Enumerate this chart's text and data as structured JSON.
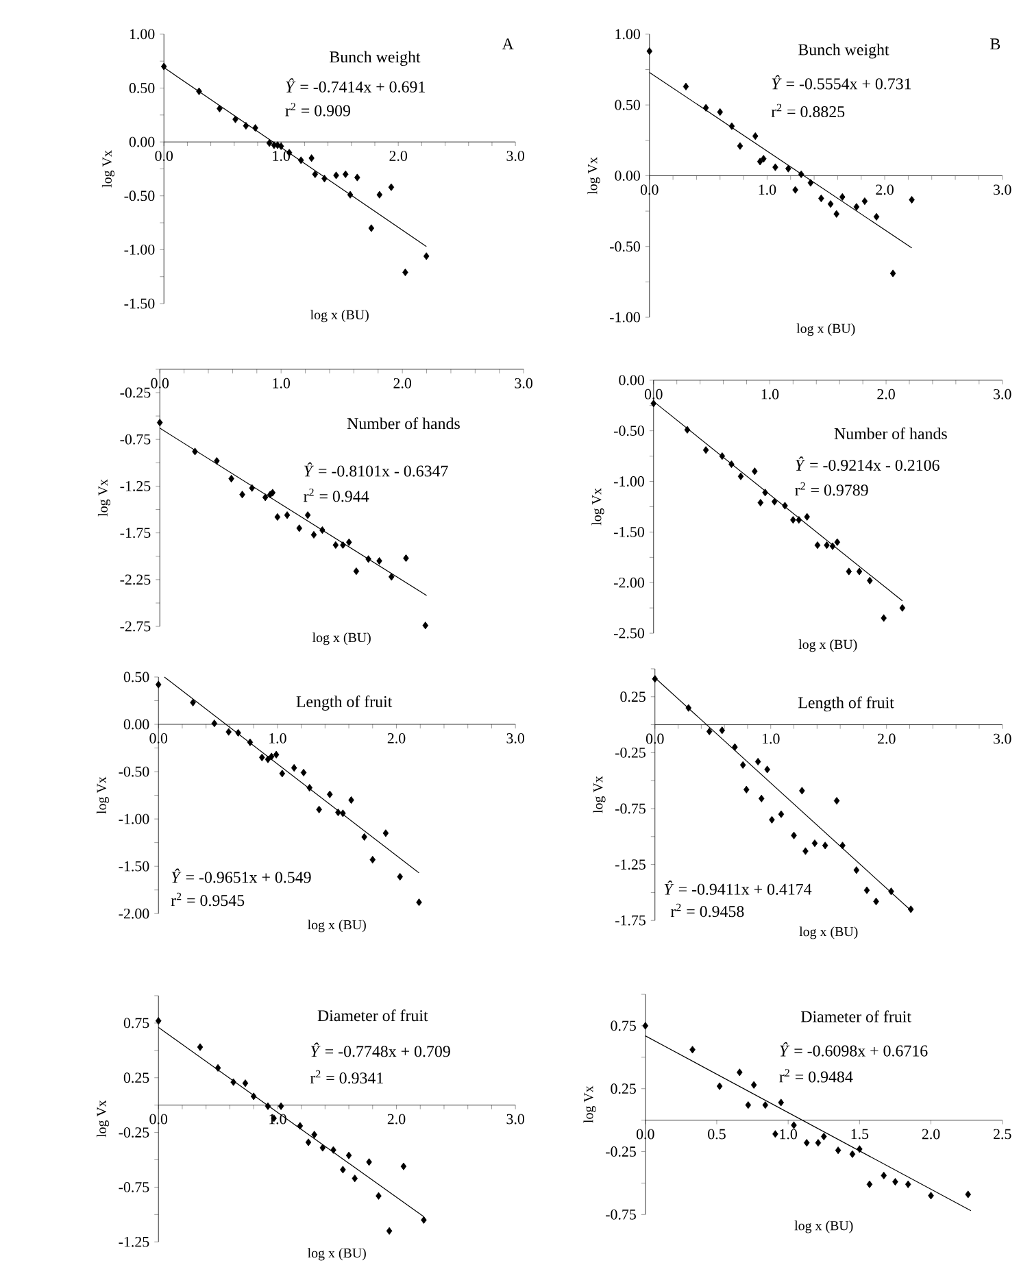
{
  "chart_data": [
    {
      "type": "scatter",
      "title": "Bunch weight",
      "xlabel": "log x (BU)",
      "ylabel": "log Vx",
      "annotations": [
        "*Ŷ* = -0.7414x + 0.691",
        "r$^{2}$ = 0.909",
        "A"
      ],
      "xlim": [
        0,
        3
      ],
      "ylim": [
        -1.5,
        1.0
      ],
      "xticks": [
        {
          "value": 0,
          "label": "0.0"
        },
        {
          "value": 0.2,
          "label": null
        },
        {
          "value": 0.4,
          "label": null
        },
        {
          "value": 0.6,
          "label": null
        },
        {
          "value": 0.8,
          "label": null
        },
        {
          "value": 1,
          "label": "1.0"
        },
        {
          "value": 1.2,
          "label": null
        },
        {
          "value": 1.4,
          "label": null
        },
        {
          "value": 1.6,
          "label": null
        },
        {
          "value": 1.8,
          "label": null
        },
        {
          "value": 2,
          "label": "2.0"
        },
        {
          "value": 2.2,
          "label": null
        },
        {
          "value": 2.4,
          "label": null
        },
        {
          "value": 2.6,
          "label": null
        },
        {
          "value": 2.8,
          "label": null
        },
        {
          "value": 3,
          "label": "3.0"
        }
      ],
      "yticks": [
        {
          "value": 1,
          "label": "1.00"
        },
        {
          "value": 0.75,
          "label": null
        },
        {
          "value": 0.5,
          "label": "0.50"
        },
        {
          "value": 0.25,
          "label": null
        },
        {
          "value": 0,
          "label": "0.00"
        },
        {
          "value": -0.25,
          "label": null
        },
        {
          "value": -0.5,
          "label": "-0.50"
        },
        {
          "value": -0.75,
          "label": null
        },
        {
          "value": -1,
          "label": "-1.00"
        },
        {
          "value": -1.25,
          "label": null
        },
        {
          "value": -1.5,
          "label": "-1.50"
        }
      ],
      "series": [
        {
          "marker": "diamond",
          "color": "#000000",
          "x": [
            0,
            0.3,
            0.475,
            0.61,
            0.7,
            0.78,
            0.9,
            0.94,
            0.97,
            1.0,
            1.07,
            1.17,
            1.26,
            1.29,
            1.37,
            1.47,
            1.55,
            1.59,
            1.65,
            1.77,
            1.84,
            1.94,
            2.06,
            2.24
          ],
          "values": [
            0.7,
            0.47,
            0.31,
            0.21,
            0.15,
            0.13,
            -0.01,
            -0.03,
            -0.03,
            -0.04,
            -0.1,
            -0.17,
            -0.15,
            -0.3,
            -0.34,
            -0.31,
            -0.3,
            -0.49,
            -0.33,
            -0.8,
            -0.49,
            -0.42,
            -1.21,
            -1.06
          ]
        },
        {
          "type": "line",
          "marker": "none",
          "color": "#000000",
          "line_style": "solid",
          "x": [
            0,
            2.24
          ],
          "values": [
            0.69,
            -0.97
          ]
        }
      ]
    },
    {
      "type": "scatter",
      "title": "Bunch weight",
      "xlabel": "log x (BU)",
      "ylabel": "log Vx",
      "annotations": [
        "*Ŷ* = -0.5554x + 0.731",
        "r$^{2}$ = 0.8825",
        "B"
      ],
      "xlim": [
        0,
        3
      ],
      "ylim": [
        -1.0,
        1.0
      ],
      "xticks": [
        {
          "value": 0,
          "label": "0.0"
        },
        {
          "value": 0.2,
          "label": null
        },
        {
          "value": 0.4,
          "label": null
        },
        {
          "value": 0.6,
          "label": null
        },
        {
          "value": 0.8,
          "label": null
        },
        {
          "value": 1,
          "label": "1.0"
        },
        {
          "value": 1.2,
          "label": null
        },
        {
          "value": 1.4,
          "label": null
        },
        {
          "value": 1.6,
          "label": null
        },
        {
          "value": 1.8,
          "label": null
        },
        {
          "value": 2,
          "label": "2.0"
        },
        {
          "value": 2.2,
          "label": null
        },
        {
          "value": 2.4,
          "label": null
        },
        {
          "value": 2.6,
          "label": null
        },
        {
          "value": 2.8,
          "label": null
        },
        {
          "value": 3,
          "label": "3.0"
        }
      ],
      "yticks": [
        {
          "value": 1,
          "label": "1.00"
        },
        {
          "value": 0.75,
          "label": null
        },
        {
          "value": 0.5,
          "label": "0.50"
        },
        {
          "value": 0.25,
          "label": null
        },
        {
          "value": 0,
          "label": "0.00"
        },
        {
          "value": -0.25,
          "label": null
        },
        {
          "value": -0.5,
          "label": "-0.50"
        },
        {
          "value": -0.75,
          "label": null
        },
        {
          "value": -1,
          "label": "-1.00"
        }
      ],
      "series": [
        {
          "marker": "diamond",
          "color": "#000000",
          "x": [
            0,
            0.31,
            0.48,
            0.6,
            0.7,
            0.77,
            0.9,
            0.94,
            0.97,
            1.07,
            1.18,
            1.24,
            1.29,
            1.37,
            1.46,
            1.54,
            1.59,
            1.64,
            1.76,
            1.83,
            1.93,
            2.07,
            2.23
          ],
          "values": [
            0.88,
            0.63,
            0.48,
            0.45,
            0.35,
            0.21,
            0.28,
            0.1,
            0.12,
            0.06,
            0.05,
            -0.1,
            0.01,
            -0.05,
            -0.16,
            -0.2,
            -0.27,
            -0.15,
            -0.22,
            -0.18,
            -0.29,
            -0.69,
            -0.17
          ]
        },
        {
          "type": "line",
          "marker": "none",
          "color": "#000000",
          "line_style": "solid",
          "x": [
            0,
            2.23
          ],
          "values": [
            0.73,
            -0.51
          ]
        }
      ]
    },
    {
      "type": "scatter",
      "title": "Number of hands",
      "xlabel": "log x (BU)",
      "ylabel": "log Vx",
      "annotations": [
        "*Ŷ* = -0.8101x - 0.6347",
        "r$^{2}$ = 0.944"
      ],
      "xlim": [
        0,
        3
      ],
      "ylim": [
        -2.75,
        0
      ],
      "xticks": [
        {
          "value": 0,
          "label": "0.0"
        },
        {
          "value": 0.2,
          "label": null
        },
        {
          "value": 0.4,
          "label": null
        },
        {
          "value": 0.6,
          "label": null
        },
        {
          "value": 0.8,
          "label": null
        },
        {
          "value": 1,
          "label": "1.0"
        },
        {
          "value": 1.2,
          "label": null
        },
        {
          "value": 1.4,
          "label": null
        },
        {
          "value": 1.6,
          "label": null
        },
        {
          "value": 1.8,
          "label": null
        },
        {
          "value": 2,
          "label": "2.0"
        },
        {
          "value": 2.2,
          "label": null
        },
        {
          "value": 2.4,
          "label": null
        },
        {
          "value": 2.6,
          "label": null
        },
        {
          "value": 2.8,
          "label": null
        },
        {
          "value": 3,
          "label": "3.0"
        }
      ],
      "yticks": [
        {
          "value": 0,
          "label": null
        },
        {
          "value": -0.25,
          "label": "-0.25"
        },
        {
          "value": -0.5,
          "label": null
        },
        {
          "value": -0.75,
          "label": "-0.75"
        },
        {
          "value": -1,
          "label": null
        },
        {
          "value": -1.25,
          "label": "-1.25"
        },
        {
          "value": -1.5,
          "label": null
        },
        {
          "value": -1.75,
          "label": "-1.75"
        },
        {
          "value": -2,
          "label": null
        },
        {
          "value": -2.25,
          "label": "-2.25"
        },
        {
          "value": -2.5,
          "label": null
        },
        {
          "value": -2.75,
          "label": "-2.75"
        }
      ],
      "series": [
        {
          "marker": "diamond",
          "color": "#000000",
          "x": [
            0,
            0.29,
            0.47,
            0.59,
            0.68,
            0.76,
            0.87,
            0.91,
            0.93,
            0.97,
            1.05,
            1.15,
            1.22,
            1.27,
            1.34,
            1.45,
            1.51,
            1.56,
            1.62,
            1.72,
            1.81,
            1.91,
            2.03,
            2.19
          ],
          "values": [
            -0.57,
            -0.88,
            -0.98,
            -1.17,
            -1.34,
            -1.27,
            -1.37,
            -1.34,
            -1.32,
            -1.58,
            -1.56,
            -1.7,
            -1.56,
            -1.77,
            -1.72,
            -1.88,
            -1.88,
            -1.85,
            -2.16,
            -2.03,
            -2.05,
            -2.22,
            -2.02,
            -2.74
          ]
        },
        {
          "type": "line",
          "marker": "none",
          "color": "#000000",
          "line_style": "solid",
          "x": [
            0,
            2.2
          ],
          "values": [
            -0.63,
            -2.42
          ]
        }
      ]
    },
    {
      "type": "scatter",
      "title": "Number of hands",
      "xlabel": "log x (BU)",
      "ylabel": "log Vx",
      "annotations": [
        "*Ŷ* = -0.9214x - 0.2106",
        "r$^{2}$ = 0.9789"
      ],
      "xlim": [
        0,
        3
      ],
      "ylim": [
        -2.5,
        0
      ],
      "xticks": [
        {
          "value": 0,
          "label": "0.0"
        },
        {
          "value": 0.2,
          "label": null
        },
        {
          "value": 0.4,
          "label": null
        },
        {
          "value": 0.6,
          "label": null
        },
        {
          "value": 0.8,
          "label": null
        },
        {
          "value": 1,
          "label": "1.0"
        },
        {
          "value": 1.2,
          "label": null
        },
        {
          "value": 1.4,
          "label": null
        },
        {
          "value": 1.6,
          "label": null
        },
        {
          "value": 1.8,
          "label": null
        },
        {
          "value": 2,
          "label": "2.0"
        },
        {
          "value": 2.2,
          "label": null
        },
        {
          "value": 2.4,
          "label": null
        },
        {
          "value": 2.6,
          "label": null
        },
        {
          "value": 2.8,
          "label": null
        },
        {
          "value": 3,
          "label": "3.0"
        }
      ],
      "yticks": [
        {
          "value": 0,
          "label": "0.00"
        },
        {
          "value": -0.25,
          "label": null
        },
        {
          "value": -0.5,
          "label": "-0.50"
        },
        {
          "value": -0.75,
          "label": null
        },
        {
          "value": -1,
          "label": "-1.00"
        },
        {
          "value": -1.25,
          "label": null
        },
        {
          "value": -1.5,
          "label": "-1.50"
        },
        {
          "value": -1.75,
          "label": null
        },
        {
          "value": -2,
          "label": "-2.00"
        },
        {
          "value": -2.25,
          "label": null
        },
        {
          "value": -2.5,
          "label": "-2.50"
        }
      ],
      "series": [
        {
          "marker": "diamond",
          "color": "#000000",
          "x": [
            0,
            0.29,
            0.45,
            0.59,
            0.67,
            0.75,
            0.87,
            0.92,
            0.96,
            1.04,
            1.13,
            1.2,
            1.25,
            1.32,
            1.41,
            1.49,
            1.54,
            1.58,
            1.68,
            1.77,
            1.86,
            1.98,
            2.14
          ],
          "values": [
            -0.23,
            -0.49,
            -0.69,
            -0.75,
            -0.83,
            -0.95,
            -0.9,
            -1.21,
            -1.11,
            -1.2,
            -1.24,
            -1.38,
            -1.38,
            -1.35,
            -1.63,
            -1.63,
            -1.64,
            -1.6,
            -1.89,
            -1.89,
            -1.98,
            -2.35,
            -2.25
          ]
        },
        {
          "type": "line",
          "marker": "none",
          "color": "#000000",
          "line_style": "solid",
          "x": [
            0,
            2.14
          ],
          "values": [
            -0.21,
            -2.18
          ]
        }
      ]
    },
    {
      "type": "scatter",
      "title": "Length of fruit",
      "xlabel": "log x (BU)",
      "ylabel": "log Vx",
      "annotations": [
        "*Ŷ* = -0.9651x + 0.549",
        "r$^{2}$ = 0.9545"
      ],
      "xlim": [
        0,
        3
      ],
      "ylim": [
        -2.0,
        0.5
      ],
      "xticks": [
        {
          "value": 0,
          "label": "0.0"
        },
        {
          "value": 0.2,
          "label": null
        },
        {
          "value": 0.4,
          "label": null
        },
        {
          "value": 0.6,
          "label": null
        },
        {
          "value": 0.8,
          "label": null
        },
        {
          "value": 1,
          "label": "1.0"
        },
        {
          "value": 1.2,
          "label": null
        },
        {
          "value": 1.4,
          "label": null
        },
        {
          "value": 1.6,
          "label": null
        },
        {
          "value": 1.8,
          "label": null
        },
        {
          "value": 2,
          "label": "2.0"
        },
        {
          "value": 2.2,
          "label": null
        },
        {
          "value": 2.4,
          "label": null
        },
        {
          "value": 2.6,
          "label": null
        },
        {
          "value": 2.8,
          "label": null
        },
        {
          "value": 3,
          "label": "3.0"
        }
      ],
      "yticks": [
        {
          "value": 0.5,
          "label": "0.50"
        },
        {
          "value": 0.25,
          "label": null
        },
        {
          "value": 0,
          "label": "0.00"
        },
        {
          "value": -0.25,
          "label": null
        },
        {
          "value": -0.5,
          "label": "-0.50"
        },
        {
          "value": -0.75,
          "label": null
        },
        {
          "value": -1,
          "label": "-1.00"
        },
        {
          "value": -1.25,
          "label": null
        },
        {
          "value": -1.5,
          "label": "-1.50"
        },
        {
          "value": -1.75,
          "label": null
        },
        {
          "value": -2,
          "label": "-2.00"
        }
      ],
      "series": [
        {
          "marker": "diamond",
          "color": "#000000",
          "x": [
            0,
            0.29,
            0.47,
            0.59,
            0.67,
            0.77,
            0.87,
            0.92,
            0.95,
            0.99,
            1.04,
            1.14,
            1.22,
            1.27,
            1.35,
            1.44,
            1.51,
            1.55,
            1.62,
            1.73,
            1.8,
            1.91,
            2.03,
            2.19
          ],
          "values": [
            0.42,
            0.23,
            0.01,
            -0.08,
            -0.09,
            -0.19,
            -0.35,
            -0.37,
            -0.34,
            -0.32,
            -0.52,
            -0.46,
            -0.51,
            -0.67,
            -0.9,
            -0.74,
            -0.93,
            -0.94,
            -0.8,
            -1.19,
            -1.43,
            -1.15,
            -1.61,
            -1.88
          ]
        },
        {
          "type": "line",
          "marker": "none",
          "color": "#000000",
          "line_style": "solid",
          "x": [
            0.05,
            2.19
          ],
          "values": [
            0.5,
            -1.57
          ]
        }
      ]
    },
    {
      "type": "scatter",
      "title": "Length of fruit",
      "xlabel": "log x (BU)",
      "ylabel": "log Vx",
      "annotations": [
        "*Ŷ* = -0.9411x + 0.4174",
        "r$^{2}$ = 0.9458"
      ],
      "xlim": [
        0,
        3
      ],
      "ylim": [
        -1.75,
        0.5
      ],
      "xticks": [
        {
          "value": 0,
          "label": "0.0"
        },
        {
          "value": 0.2,
          "label": null
        },
        {
          "value": 0.4,
          "label": null
        },
        {
          "value": 0.6,
          "label": null
        },
        {
          "value": 0.8,
          "label": null
        },
        {
          "value": 1,
          "label": "1.0"
        },
        {
          "value": 1.2,
          "label": null
        },
        {
          "value": 1.4,
          "label": null
        },
        {
          "value": 1.6,
          "label": null
        },
        {
          "value": 1.8,
          "label": null
        },
        {
          "value": 2,
          "label": "2.0"
        },
        {
          "value": 2.2,
          "label": null
        },
        {
          "value": 2.4,
          "label": null
        },
        {
          "value": 2.6,
          "label": null
        },
        {
          "value": 2.8,
          "label": null
        },
        {
          "value": 3,
          "label": "3.0"
        }
      ],
      "yticks": [
        {
          "value": 0.5,
          "label": null
        },
        {
          "value": 0.25,
          "label": "0.25"
        },
        {
          "value": 0,
          "label": null
        },
        {
          "value": -0.25,
          "label": "-0.25"
        },
        {
          "value": -0.5,
          "label": null
        },
        {
          "value": -0.75,
          "label": "-0.75"
        },
        {
          "value": -1,
          "label": null
        },
        {
          "value": -1.25,
          "label": "-1.25"
        },
        {
          "value": -1.5,
          "label": null
        },
        {
          "value": -1.75,
          "label": "-1.75"
        }
      ],
      "series": [
        {
          "marker": "diamond",
          "color": "#000000",
          "x": [
            0,
            0.29,
            0.47,
            0.58,
            0.69,
            0.76,
            0.79,
            0.89,
            0.92,
            0.97,
            1.01,
            1.09,
            1.2,
            1.27,
            1.3,
            1.38,
            1.47,
            1.57,
            1.62,
            1.74,
            1.83,
            1.91,
            2.04,
            2.21
          ],
          "values": [
            0.41,
            0.15,
            -0.06,
            -0.05,
            -0.2,
            -0.36,
            -0.58,
            -0.33,
            -0.66,
            -0.4,
            -0.85,
            -0.8,
            -0.99,
            -0.59,
            -1.13,
            -1.06,
            -1.08,
            -0.68,
            -1.08,
            -1.3,
            -1.48,
            -1.58,
            -1.49,
            -1.65
          ]
        },
        {
          "type": "line",
          "marker": "none",
          "color": "#000000",
          "line_style": "solid",
          "x": [
            0,
            2.21
          ],
          "values": [
            0.42,
            -1.66
          ]
        }
      ]
    },
    {
      "type": "scatter",
      "title": "Diameter of fruit",
      "xlabel": "log x (BU)",
      "ylabel": "log Vx",
      "annotations": [
        "*Ŷ* = -0.7748x + 0.709",
        "r$^{2}$ = 0.9341"
      ],
      "xlim": [
        0,
        3
      ],
      "ylim": [
        -1.25,
        1.0
      ],
      "xticks": [
        {
          "value": 0,
          "label": "0.0"
        },
        {
          "value": 0.2,
          "label": null
        },
        {
          "value": 0.4,
          "label": null
        },
        {
          "value": 0.6,
          "label": null
        },
        {
          "value": 0.8,
          "label": null
        },
        {
          "value": 1,
          "label": "1.0"
        },
        {
          "value": 1.2,
          "label": null
        },
        {
          "value": 1.4,
          "label": null
        },
        {
          "value": 1.6,
          "label": null
        },
        {
          "value": 1.8,
          "label": null
        },
        {
          "value": 2,
          "label": "2.0"
        },
        {
          "value": 2.2,
          "label": null
        },
        {
          "value": 2.4,
          "label": null
        },
        {
          "value": 2.6,
          "label": null
        },
        {
          "value": 2.8,
          "label": null
        },
        {
          "value": 3,
          "label": "3.0"
        }
      ],
      "yticks": [
        {
          "value": 1,
          "label": null
        },
        {
          "value": 0.75,
          "label": "0.75"
        },
        {
          "value": 0.5,
          "label": null
        },
        {
          "value": 0.25,
          "label": "0.25"
        },
        {
          "value": 0,
          "label": null
        },
        {
          "value": -0.25,
          "label": "-0.25"
        },
        {
          "value": -0.5,
          "label": null
        },
        {
          "value": -0.75,
          "label": "-0.75"
        },
        {
          "value": -1,
          "label": null
        },
        {
          "value": -1.25,
          "label": "-1.25"
        }
      ],
      "series": [
        {
          "marker": "diamond",
          "color": "#000000",
          "x": [
            0,
            0.35,
            0.5,
            0.63,
            0.73,
            0.8,
            0.92,
            0.97,
            1.03,
            1.19,
            1.26,
            1.31,
            1.38,
            1.47,
            1.55,
            1.6,
            1.65,
            1.77,
            1.85,
            1.94,
            2.06,
            2.23
          ],
          "values": [
            0.77,
            0.53,
            0.34,
            0.21,
            0.2,
            0.08,
            -0.01,
            -0.12,
            -0.01,
            -0.19,
            -0.34,
            -0.27,
            -0.39,
            -0.41,
            -0.59,
            -0.46,
            -0.67,
            -0.52,
            -0.83,
            -1.15,
            -0.56,
            -1.05
          ]
        },
        {
          "type": "line",
          "marker": "none",
          "color": "#000000",
          "line_style": "solid",
          "x": [
            0,
            2.23
          ],
          "values": [
            0.71,
            -1.02
          ]
        }
      ]
    },
    {
      "type": "scatter",
      "title": "Diameter of fruit",
      "xlabel": "log x (BU)",
      "ylabel": "log Vx",
      "annotations": [
        "*Ŷ* = -0.6098x + 0.6716",
        "r$^{2}$ = 0.9484"
      ],
      "xlim": [
        0,
        2.5
      ],
      "ylim": [
        -0.75,
        1.0
      ],
      "xticks": [
        {
          "value": 0,
          "label": "0.0"
        },
        {
          "value": 0.5,
          "label": "0.5"
        },
        {
          "value": 1,
          "label": "1.0"
        },
        {
          "value": 1.5,
          "label": "1.5"
        },
        {
          "value": 2,
          "label": "2.0"
        },
        {
          "value": 2.5,
          "label": "2.5"
        }
      ],
      "yticks": [
        {
          "value": 1,
          "label": null
        },
        {
          "value": 0.75,
          "label": "0.75"
        },
        {
          "value": 0.5,
          "label": null
        },
        {
          "value": 0.25,
          "label": "0.25"
        },
        {
          "value": 0,
          "label": null
        },
        {
          "value": -0.25,
          "label": "-0.25"
        },
        {
          "value": -0.5,
          "label": null
        },
        {
          "value": -0.75,
          "label": "-0.75"
        }
      ],
      "series": [
        {
          "marker": "diamond",
          "color": "#000000",
          "x": [
            0,
            0.33,
            0.52,
            0.66,
            0.72,
            0.76,
            0.84,
            0.91,
            0.95,
            1.04,
            1.13,
            1.21,
            1.25,
            1.35,
            1.45,
            1.5,
            1.57,
            1.67,
            1.75,
            1.84,
            2.0,
            2.26
          ],
          "values": [
            0.75,
            0.56,
            0.27,
            0.38,
            0.12,
            0.28,
            0.12,
            -0.11,
            0.14,
            -0.04,
            -0.18,
            -0.18,
            -0.13,
            -0.24,
            -0.27,
            -0.23,
            -0.51,
            -0.44,
            -0.49,
            -0.51,
            -0.6,
            -0.59
          ]
        },
        {
          "type": "line",
          "marker": "none",
          "color": "#000000",
          "line_style": "solid",
          "x": [
            0,
            2.28
          ],
          "values": [
            0.67,
            -0.72
          ]
        }
      ]
    }
  ]
}
